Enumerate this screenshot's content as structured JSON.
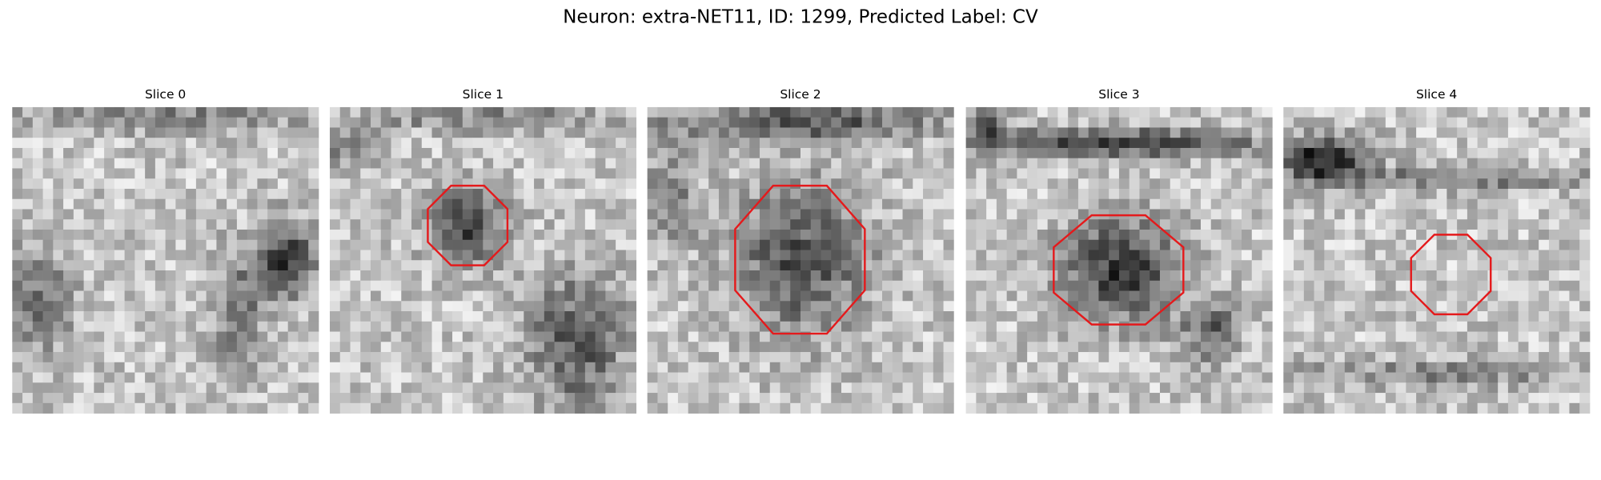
{
  "title": "Neuron: extra-NET11, ID: 1299, Predicted Label: CV",
  "panels": [
    {
      "title": "Slice 0"
    },
    {
      "title": "Slice 1"
    },
    {
      "title": "Slice 2"
    },
    {
      "title": "Slice 3"
    },
    {
      "title": "Slice 4"
    }
  ]
}
